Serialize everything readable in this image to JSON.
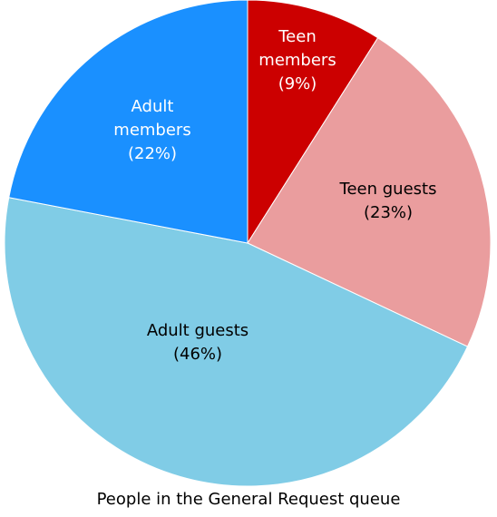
{
  "chart_data": {
    "type": "pie",
    "title": "People in the General Request queue",
    "start_angle_deg": 0,
    "direction": "clockwise",
    "slices": [
      {
        "label_lines": [
          "Teen",
          "members"
        ],
        "percent_label": "(9%)",
        "value": 9,
        "color": "#cc0000",
        "text_color": "#ffffff"
      },
      {
        "label_lines": [
          "Teen guests"
        ],
        "percent_label": "(23%)",
        "value": 23,
        "color": "#ea9d9e",
        "text_color": "#000000"
      },
      {
        "label_lines": [
          "Adult guests"
        ],
        "percent_label": "(46%)",
        "value": 46,
        "color": "#80cce6",
        "text_color": "#000000"
      },
      {
        "label_lines": [
          "Adult",
          "members"
        ],
        "percent_label": "(22%)",
        "value": 22,
        "color": "#1a90ff",
        "text_color": "#ffffff"
      }
    ]
  }
}
